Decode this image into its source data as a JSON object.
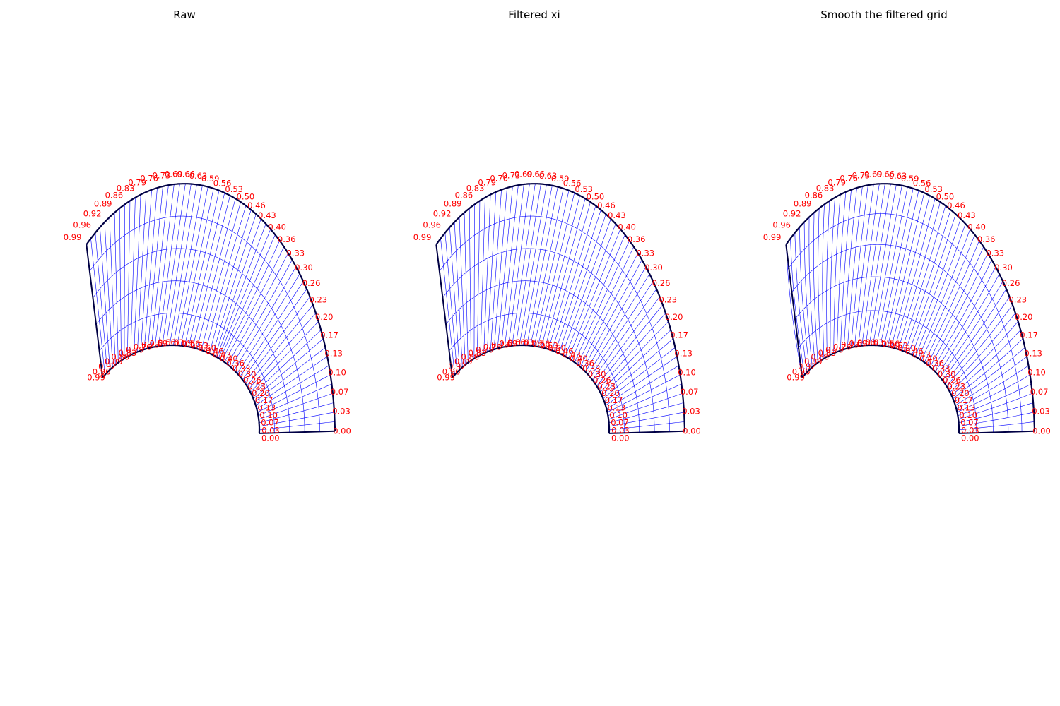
{
  "figure": {
    "panels": [
      {
        "title": "Raw",
        "grid_variant": "raw"
      },
      {
        "title": "Filtered xi",
        "grid_variant": "filtered"
      },
      {
        "title": "Smooth the filtered grid",
        "grid_variant": "smooth"
      }
    ],
    "boundary_labels": [
      "0.00",
      "0.03",
      "0.07",
      "0.10",
      "0.13",
      "0.17",
      "0.20",
      "0.23",
      "0.26",
      "0.30",
      "0.33",
      "0.36",
      "0.40",
      "0.43",
      "0.46",
      "0.50",
      "0.53",
      "0.56",
      "0.59",
      "0.63",
      "0.66",
      "0.69",
      "0.73",
      "0.76",
      "0.79",
      "0.83",
      "0.86",
      "0.89",
      "0.92",
      "0.96",
      "0.99"
    ],
    "colors": {
      "grid_line": "#0000ff",
      "boundary": "#000044",
      "label": "#ff0000",
      "background": "#ffffff"
    }
  }
}
